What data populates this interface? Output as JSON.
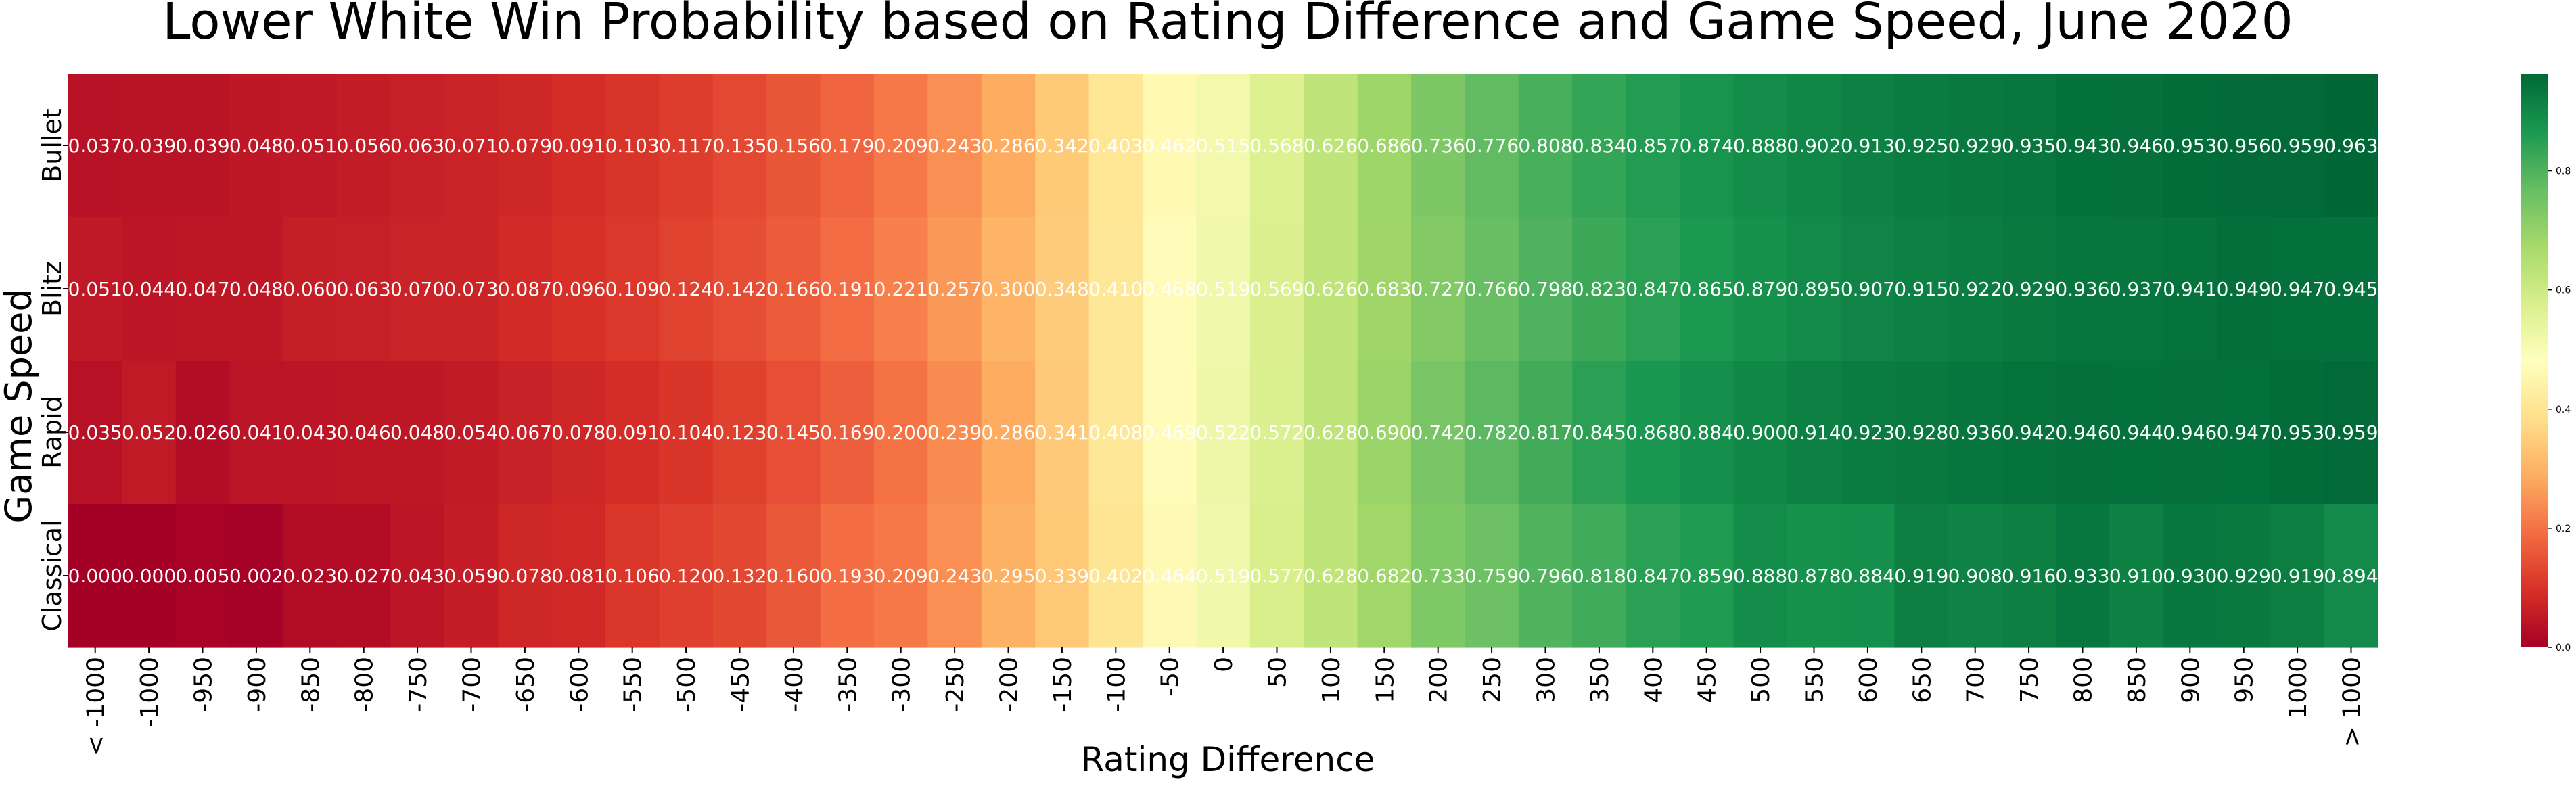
{
  "chart_data": {
    "type": "heatmap",
    "title": "Lower White Win Probability based on Rating Difference and Game Speed, June 2020",
    "xlabel": "Rating Difference",
    "ylabel": "Game Speed",
    "x_categories": [
      "< -1000",
      "-1000",
      "-950",
      "-900",
      "-850",
      "-800",
      "-750",
      "-700",
      "-650",
      "-600",
      "-550",
      "-500",
      "-450",
      "-400",
      "-350",
      "-300",
      "-250",
      "-200",
      "-150",
      "-100",
      "-50",
      "0",
      "50",
      "100",
      "150",
      "200",
      "250",
      "300",
      "350",
      "400",
      "450",
      "500",
      "550",
      "600",
      "650",
      "700",
      "750",
      "800",
      "850",
      "900",
      "950",
      "1000",
      "> 1000"
    ],
    "y_categories": [
      "Bullet",
      "Blitz",
      "Rapid",
      "Classical"
    ],
    "values": [
      [
        0.037,
        0.039,
        0.039,
        0.048,
        0.051,
        0.056,
        0.063,
        0.071,
        0.079,
        0.091,
        0.103,
        0.117,
        0.135,
        0.156,
        0.179,
        0.209,
        0.243,
        0.286,
        0.342,
        0.403,
        0.462,
        0.515,
        0.568,
        0.626,
        0.686,
        0.736,
        0.776,
        0.808,
        0.834,
        0.857,
        0.874,
        0.888,
        0.902,
        0.913,
        0.925,
        0.929,
        0.935,
        0.943,
        0.946,
        0.953,
        0.956,
        0.959,
        0.963
      ],
      [
        0.051,
        0.044,
        0.047,
        0.048,
        0.06,
        0.063,
        0.07,
        0.073,
        0.087,
        0.096,
        0.109,
        0.124,
        0.142,
        0.166,
        0.191,
        0.221,
        0.257,
        0.3,
        0.348,
        0.41,
        0.468,
        0.519,
        0.569,
        0.626,
        0.683,
        0.727,
        0.766,
        0.798,
        0.823,
        0.847,
        0.865,
        0.879,
        0.895,
        0.907,
        0.915,
        0.922,
        0.929,
        0.936,
        0.937,
        0.941,
        0.949,
        0.947,
        0.945
      ],
      [
        0.035,
        0.052,
        0.026,
        0.041,
        0.043,
        0.046,
        0.048,
        0.054,
        0.067,
        0.078,
        0.091,
        0.104,
        0.123,
        0.145,
        0.169,
        0.2,
        0.239,
        0.286,
        0.341,
        0.408,
        0.469,
        0.522,
        0.572,
        0.628,
        0.69,
        0.742,
        0.782,
        0.817,
        0.845,
        0.868,
        0.884,
        0.9,
        0.914,
        0.923,
        0.928,
        0.936,
        0.942,
        0.946,
        0.944,
        0.946,
        0.947,
        0.953,
        0.959
      ],
      [
        0.0,
        0.0,
        0.005,
        0.002,
        0.023,
        0.027,
        0.043,
        0.059,
        0.078,
        0.081,
        0.106,
        0.12,
        0.132,
        0.16,
        0.193,
        0.209,
        0.243,
        0.295,
        0.339,
        0.402,
        0.464,
        0.519,
        0.577,
        0.628,
        0.682,
        0.733,
        0.759,
        0.796,
        0.818,
        0.847,
        0.859,
        0.888,
        0.878,
        0.884,
        0.919,
        0.908,
        0.916,
        0.933,
        0.91,
        0.93,
        0.929,
        0.919,
        0.894
      ]
    ],
    "value_format": "3 decimals",
    "colormap": "RdYlGn",
    "colorbar": {
      "range": [
        0,
        0.963
      ],
      "ticks": [
        0.0,
        0.2,
        0.4,
        0.6,
        0.8
      ],
      "tick_labels": [
        "0.0",
        "0.2",
        "0.4",
        "0.6",
        "0.8"
      ]
    },
    "colormap_stops": [
      "#a50026",
      "#d73027",
      "#f46d43",
      "#fdae61",
      "#fee08b",
      "#ffffbf",
      "#d9ef8b",
      "#a6d96a",
      "#66bd63",
      "#1a9850",
      "#006837"
    ],
    "annotation_color": "#ffffff",
    "grid": false,
    "legend": "colorbar right"
  }
}
